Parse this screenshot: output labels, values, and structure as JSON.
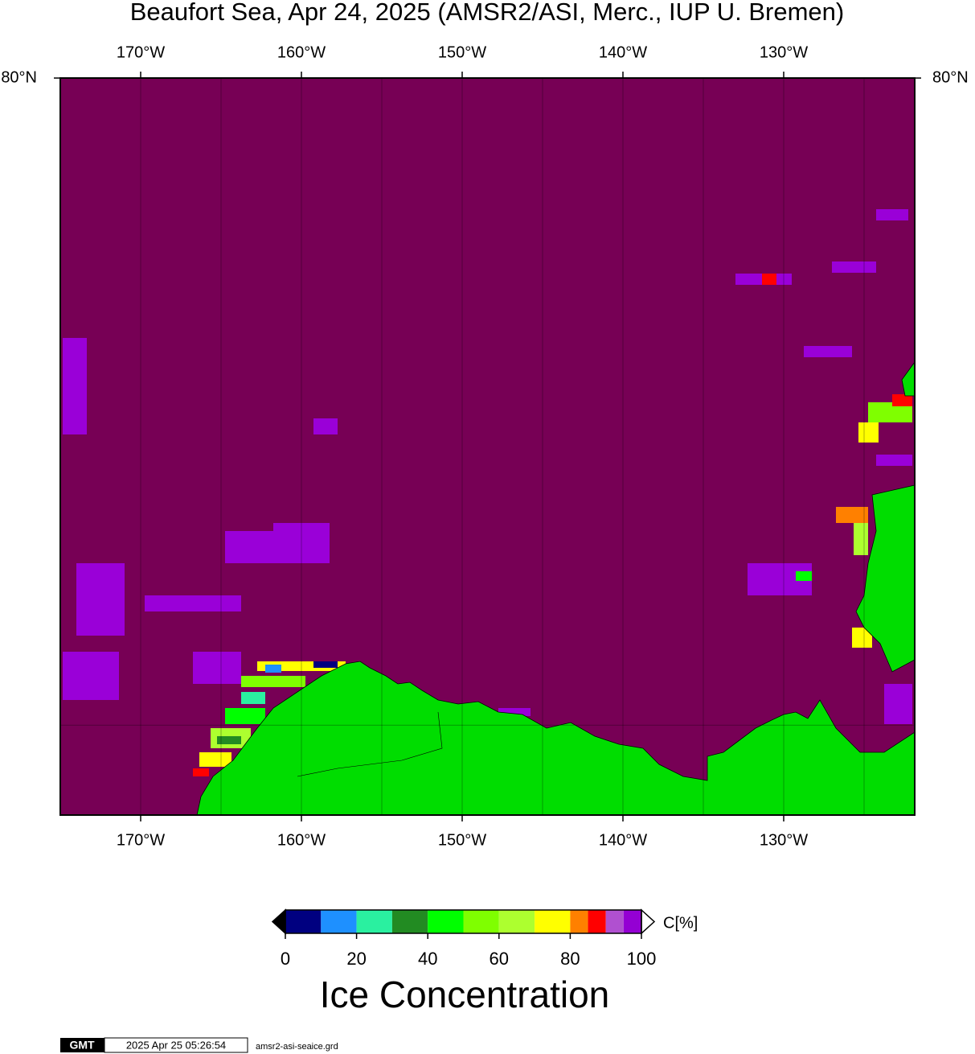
{
  "map": {
    "title": "Beaufort Sea, Apr 24, 2025 (AMSR2/ASI, Merc., IUP U. Bremen)",
    "xlim": [
      -175,
      -121.85
    ],
    "ylim": [
      68,
      80
    ],
    "xticks": [
      {
        "value": -170,
        "label": "170°W"
      },
      {
        "value": -160,
        "label": "160°W"
      },
      {
        "value": -150,
        "label": "150°W"
      },
      {
        "value": -140,
        "label": "140°W"
      },
      {
        "value": -130,
        "label": "130°W"
      }
    ],
    "yticks": [
      {
        "value": 80,
        "label": "80°N"
      }
    ],
    "grid_lons": [
      -175,
      -170,
      -165,
      -160,
      -155,
      -150,
      -145,
      -140,
      -135,
      -130,
      -125
    ],
    "grid_lats": [
      70
    ],
    "sea_color": "#770055",
    "land_color": "#00dd00"
  },
  "colorbar": {
    "label": "Ice Concentration",
    "unit": "C[%]",
    "lim": [
      0,
      100
    ],
    "ticks": [
      0,
      20,
      40,
      60,
      80,
      100
    ],
    "bounds": [
      0,
      10,
      20,
      30,
      40,
      50,
      60,
      70,
      80,
      85,
      90,
      95,
      100
    ],
    "colors": [
      "#000080",
      "#1e90ff",
      "#2af0a0",
      "#228b22",
      "#00ff00",
      "#7fff00",
      "#adff2f",
      "#ffff00",
      "#ff8000",
      "#ff0000",
      "#b050d0",
      "#9400d3"
    ],
    "below_color": "#000000",
    "above_color": "#ffffff"
  },
  "footer": {
    "logo": "GMT",
    "timestamp": "2025 Apr 25 05:26:54",
    "file": "amsr2-asi-seaice.grd"
  }
}
